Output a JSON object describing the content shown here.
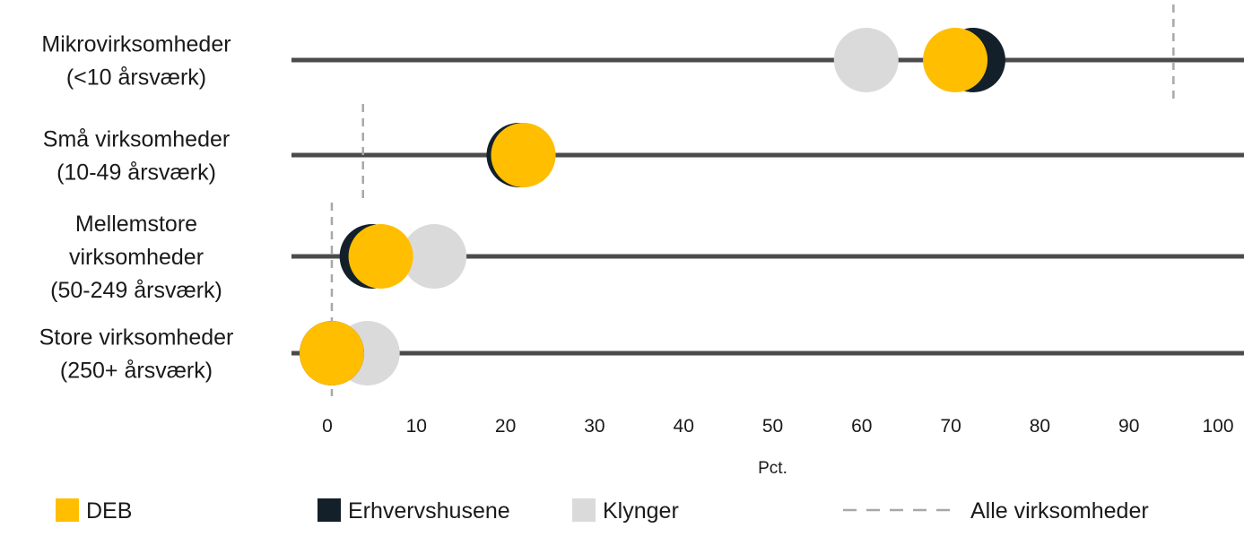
{
  "chart_data": {
    "type": "scatter",
    "subtype": "dot-plot",
    "xlabel": "Pct.",
    "xlim": [
      0,
      100
    ],
    "xticks": [
      "0",
      "10",
      "20",
      "30",
      "40",
      "50",
      "60",
      "70",
      "80",
      "90",
      "100"
    ],
    "grid": false,
    "legend_position": "bottom",
    "categories": [
      [
        "Mikrovirksomheder",
        "(<10 årsværk)"
      ],
      [
        "Små virksomheder",
        "(10-49 årsværk)"
      ],
      [
        "Mellemstore",
        "virksomheder",
        "(50-249 årsværk)"
      ],
      [
        "Store virksomheder",
        "(250+ årsværk)"
      ]
    ],
    "series": [
      {
        "name": "Klynger",
        "color": "#dadada",
        "values": [
          60.5,
          22,
          12,
          4.5
        ]
      },
      {
        "name": "Erhvervshusene",
        "color": "#13202a",
        "values": [
          72.5,
          21.5,
          5,
          0.5
        ]
      },
      {
        "name": "DEB",
        "color": "#ffbe00",
        "values": [
          70.5,
          22,
          6,
          0.5
        ]
      }
    ],
    "reference": {
      "name": "Alle virksomheder",
      "style": "dashed",
      "color": "#a8a8a8",
      "values": [
        95,
        4,
        0.5,
        0.5
      ]
    },
    "legend": [
      "DEB",
      "Erhvervshusene",
      "Klynger",
      "Alle virksomheder"
    ]
  }
}
